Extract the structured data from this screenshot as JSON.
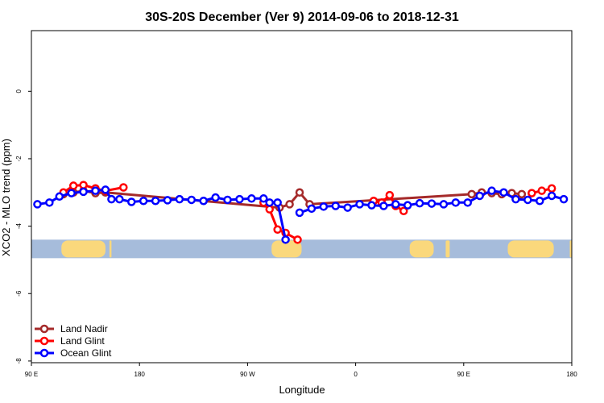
{
  "chart_data": {
    "type": "line",
    "title": "30S-20S December (Ver 9)   2014-09-06 to 2018-12-31",
    "xlabel": "Longitude",
    "ylabel": "XCO2 - MLO trend (ppm)",
    "xlim": [
      -90,
      180
    ],
    "ylim": [
      -8.05,
      1.8
    ],
    "x_ticks": [
      {
        "value": -90,
        "label": "90 E"
      },
      {
        "value": -36,
        "label": "180"
      },
      {
        "value": 18,
        "label": "90 W"
      },
      {
        "value": 72,
        "label": "0"
      },
      {
        "value": 126,
        "label": "90 E"
      },
      {
        "value": 180,
        "label": "180"
      }
    ],
    "y_ticks": [
      {
        "value": 0,
        "label": "0"
      },
      {
        "value": -2,
        "label": "-2"
      },
      {
        "value": -4,
        "label": "-4"
      },
      {
        "value": -6,
        "label": "-6"
      },
      {
        "value": -8,
        "label": "-8"
      }
    ],
    "land_band": {
      "y_range": [
        -4.95,
        -4.4
      ],
      "ocean_color": "#a6bcdb",
      "land_color": "#fad87c",
      "land_spans": [
        [
          -75,
          -53
        ],
        [
          -51,
          -50
        ],
        [
          30,
          45
        ],
        [
          99,
          111
        ],
        [
          117,
          119
        ],
        [
          148,
          171
        ],
        [
          179,
          180
        ]
      ]
    },
    "series": [
      {
        "name": "Land Nadir",
        "color": "#a52a2a",
        "x": [
          -74,
          -69,
          -64,
          -58,
          -53,
          34,
          39,
          44,
          49,
          130,
          135,
          140,
          145,
          150,
          155
        ],
        "y": [
          -3.05,
          -3.0,
          -2.95,
          -3.02,
          -3.0,
          -3.45,
          -3.35,
          -3.0,
          -3.35,
          -3.05,
          -3.0,
          -3.02,
          -3.05,
          -3.02,
          -3.05
        ]
      },
      {
        "name": "Land Glint",
        "color": "#ff0000",
        "segments": [
          {
            "x": [
              -74,
              -69,
              -64,
              -58,
              -53,
              -44
            ],
            "y": [
              -3.0,
              -2.8,
              -2.78,
              -2.88,
              -2.95,
              -2.85
            ]
          },
          {
            "x": [
              26,
              29,
              33,
              37,
              43
            ],
            "y": [
              -3.3,
              -3.5,
              -4.1,
              -4.2,
              -4.4
            ]
          },
          {
            "x": [
              81,
              85,
              89,
              92,
              96
            ],
            "y": [
              -3.25,
              -3.3,
              -3.08,
              -3.4,
              -3.55
            ]
          },
          {
            "x": [
              160,
              165,
              170
            ],
            "y": [
              -3.02,
              -2.95,
              -2.88
            ]
          }
        ]
      },
      {
        "name": "Ocean Glint",
        "color": "#0000ff",
        "segments": [
          {
            "x": [
              -87,
              -81,
              -76,
              -70,
              -64,
              -58,
              -53,
              -50,
              -46,
              -40,
              -34,
              -28,
              -22,
              -16,
              -10,
              -4,
              2,
              8,
              14,
              20,
              26,
              29,
              33,
              37
            ],
            "y": [
              -3.35,
              -3.3,
              -3.12,
              -3.02,
              -2.98,
              -2.95,
              -2.92,
              -3.2,
              -3.2,
              -3.28,
              -3.25,
              -3.25,
              -3.23,
              -3.2,
              -3.22,
              -3.25,
              -3.15,
              -3.22,
              -3.2,
              -3.18,
              -3.18,
              -3.3,
              -3.3,
              -4.4
            ]
          },
          {
            "x": [
              44,
              50,
              56,
              62,
              68,
              74,
              80,
              86,
              92,
              98,
              104,
              110,
              116,
              122,
              128,
              134,
              140,
              146,
              152,
              158,
              164,
              170,
              176
            ],
            "y": [
              -3.6,
              -3.48,
              -3.42,
              -3.4,
              -3.45,
              -3.35,
              -3.38,
              -3.4,
              -3.35,
              -3.38,
              -3.32,
              -3.33,
              -3.35,
              -3.3,
              -3.3,
              -3.1,
              -2.95,
              -3.0,
              -3.2,
              -3.22,
              -3.25,
              -3.1,
              -3.2
            ]
          }
        ]
      }
    ],
    "legend_position": "bottom-left"
  }
}
